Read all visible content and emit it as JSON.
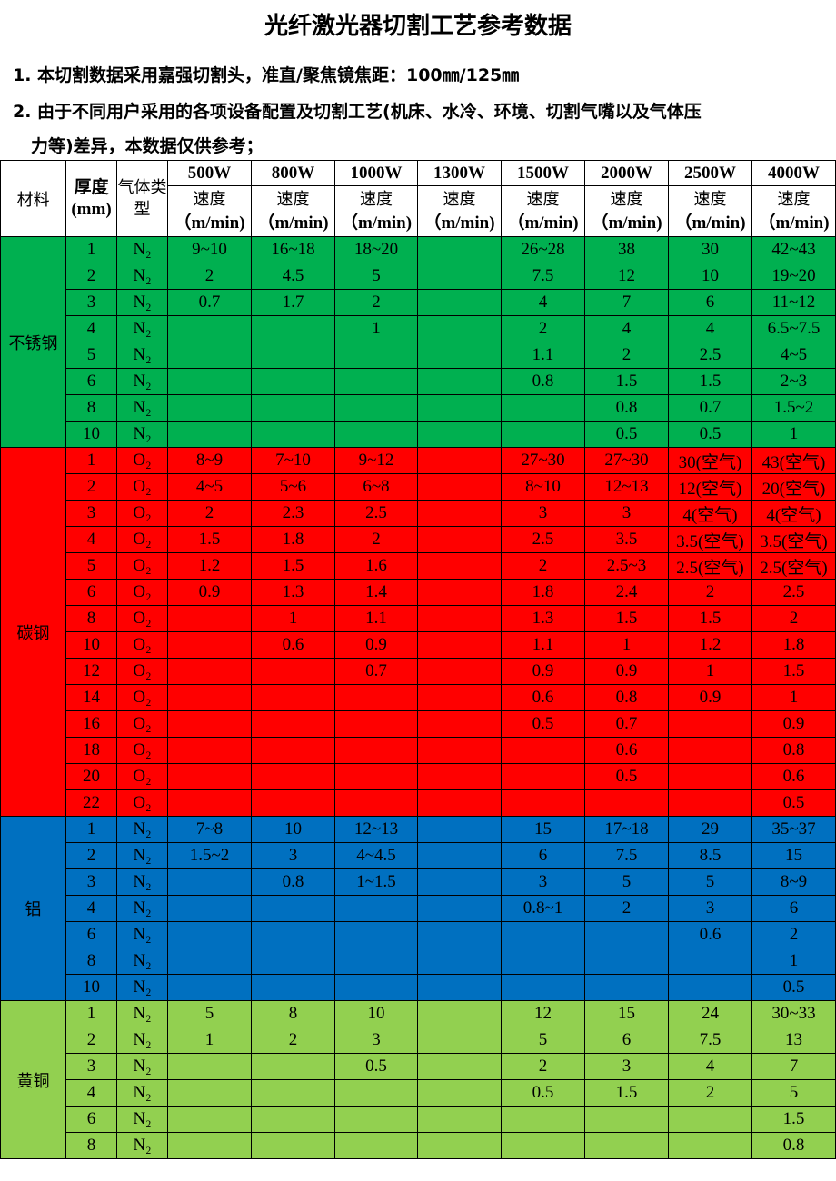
{
  "title": "光纤激光器切割工艺参考数据",
  "notes": [
    "1. 本切割数据采用嘉强切割头，准直/聚焦镜焦距：100㎜/125㎜",
    "2. 由于不同用户采用的各项设备配置及切割工艺(机床、水冷、环境、切割气嘴以及气体压",
    "力等)差异，本数据仅供参考；"
  ],
  "header": {
    "material": "材料",
    "thickness": "厚度(mm)",
    "gas": "气体类型",
    "speed": "速度",
    "unit": "（m/min)",
    "powers": [
      "500W",
      "800W",
      "1000W",
      "1300W",
      "1500W",
      "2000W",
      "2500W",
      "4000W"
    ]
  },
  "groups": [
    {
      "material": "不锈钢",
      "color": "#00b050",
      "rows": [
        [
          "1",
          "N₂",
          "9~10",
          "16~18",
          "18~20",
          "",
          "26~28",
          "38",
          "30",
          "42~43"
        ],
        [
          "2",
          "N₂",
          "2",
          "4.5",
          "5",
          "",
          "7.5",
          "12",
          "10",
          "19~20"
        ],
        [
          "3",
          "N₂",
          "0.7",
          "1.7",
          "2",
          "",
          "4",
          "7",
          "6",
          "11~12"
        ],
        [
          "4",
          "N₂",
          "",
          "",
          "1",
          "",
          "2",
          "4",
          "4",
          "6.5~7.5"
        ],
        [
          "5",
          "N₂",
          "",
          "",
          "",
          "",
          "1.1",
          "2",
          "2.5",
          "4~5"
        ],
        [
          "6",
          "N₂",
          "",
          "",
          "",
          "",
          "0.8",
          "1.5",
          "1.5",
          "2~3"
        ],
        [
          "8",
          "N₂",
          "",
          "",
          "",
          "",
          "",
          "0.8",
          "0.7",
          "1.5~2"
        ],
        [
          "10",
          "N₂",
          "",
          "",
          "",
          "",
          "",
          "0.5",
          "0.5",
          "1"
        ]
      ]
    },
    {
      "material": "碳钢",
      "color": "#ff0000",
      "rows": [
        [
          "1",
          "O₂",
          "8~9",
          "7~10",
          "9~12",
          "",
          "27~30",
          "27~30",
          "30(空气)",
          "43(空气)"
        ],
        [
          "2",
          "O₂",
          "4~5",
          "5~6",
          "6~8",
          "",
          "8~10",
          "12~13",
          "12(空气)",
          "20(空气)"
        ],
        [
          "3",
          "O₂",
          "2",
          "2.3",
          "2.5",
          "",
          "3",
          "3",
          "4(空气)",
          "4(空气)"
        ],
        [
          "4",
          "O₂",
          "1.5",
          "1.8",
          "2",
          "",
          "2.5",
          "3.5",
          "3.5(空气)",
          "3.5(空气)"
        ],
        [
          "5",
          "O₂",
          "1.2",
          "1.5",
          "1.6",
          "",
          "2",
          "2.5~3",
          "2.5(空气)",
          "2.5(空气)"
        ],
        [
          "6",
          "O₂",
          "0.9",
          "1.3",
          "1.4",
          "",
          "1.8",
          "2.4",
          "2",
          "2.5"
        ],
        [
          "8",
          "O₂",
          "",
          "1",
          "1.1",
          "",
          "1.3",
          "1.5",
          "1.5",
          "2"
        ],
        [
          "10",
          "O₂",
          "",
          "0.6",
          "0.9",
          "",
          "1.1",
          "1",
          "1.2",
          "1.8"
        ],
        [
          "12",
          "O₂",
          "",
          "",
          "0.7",
          "",
          "0.9",
          "0.9",
          "1",
          "1.5"
        ],
        [
          "14",
          "O₂",
          "",
          "",
          "",
          "",
          "0.6",
          "0.8",
          "0.9",
          "1"
        ],
        [
          "16",
          "O₂",
          "",
          "",
          "",
          "",
          "0.5",
          "0.7",
          "",
          "0.9"
        ],
        [
          "18",
          "O₂",
          "",
          "",
          "",
          "",
          "",
          "0.6",
          "",
          "0.8"
        ],
        [
          "20",
          "O₂",
          "",
          "",
          "",
          "",
          "",
          "0.5",
          "",
          "0.6"
        ],
        [
          "22",
          "O₂",
          "",
          "",
          "",
          "",
          "",
          "",
          "",
          "0.5"
        ]
      ]
    },
    {
      "material": "铝",
      "color": "#0070c0",
      "rows": [
        [
          "1",
          "N₂",
          "7~8",
          "10",
          "12~13",
          "",
          "15",
          "17~18",
          "29",
          "35~37"
        ],
        [
          "2",
          "N₂",
          "1.5~2",
          "3",
          "4~4.5",
          "",
          "6",
          "7.5",
          "8.5",
          "15"
        ],
        [
          "3",
          "N₂",
          "",
          "0.8",
          "1~1.5",
          "",
          "3",
          "5",
          "5",
          "8~9"
        ],
        [
          "4",
          "N₂",
          "",
          "",
          "",
          "",
          "0.8~1",
          "2",
          "3",
          "6"
        ],
        [
          "6",
          "N₂",
          "",
          "",
          "",
          "",
          "",
          "",
          "0.6",
          "2"
        ],
        [
          "8",
          "N₂",
          "",
          "",
          "",
          "",
          "",
          "",
          "",
          "1"
        ],
        [
          "10",
          "N₂",
          "",
          "",
          "",
          "",
          "",
          "",
          "",
          "0.5"
        ]
      ]
    },
    {
      "material": "黄铜",
      "color": "#92d050",
      "rows": [
        [
          "1",
          "N₂",
          "5",
          "8",
          "10",
          "",
          "12",
          "15",
          "24",
          "30~33"
        ],
        [
          "2",
          "N₂",
          "1",
          "2",
          "3",
          "",
          "5",
          "6",
          "7.5",
          "13"
        ],
        [
          "3",
          "N₂",
          "",
          "",
          "0.5",
          "",
          "2",
          "3",
          "4",
          "7"
        ],
        [
          "4",
          "N₂",
          "",
          "",
          "",
          "",
          "0.5",
          "1.5",
          "2",
          "5"
        ],
        [
          "6",
          "N₂",
          "",
          "",
          "",
          "",
          "",
          "",
          "",
          "1.5"
        ],
        [
          "8",
          "N₂",
          "",
          "",
          "",
          "",
          "",
          "",
          "",
          "0.8"
        ]
      ]
    }
  ]
}
